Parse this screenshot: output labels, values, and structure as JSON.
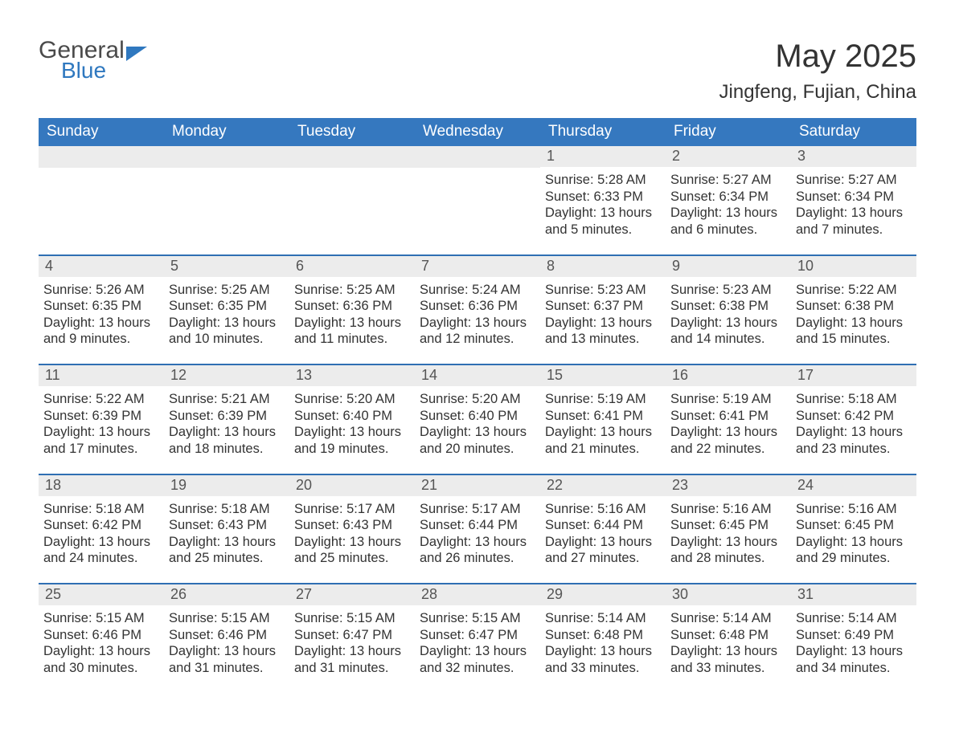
{
  "logo": {
    "general": "General",
    "blue": "Blue"
  },
  "title": "May 2025",
  "location": "Jingfeng, Fujian, China",
  "weekday_header_bg": "#3578bf",
  "weekday_header_fg": "#ffffff",
  "day_number_bg": "#ececec",
  "week_border_color": "#2f6fb3",
  "text_color": "#333333",
  "weekdays": [
    "Sunday",
    "Monday",
    "Tuesday",
    "Wednesday",
    "Thursday",
    "Friday",
    "Saturday"
  ],
  "weeks": [
    [
      {
        "day": null
      },
      {
        "day": null
      },
      {
        "day": null
      },
      {
        "day": null
      },
      {
        "day": "1",
        "sunrise": "Sunrise: 5:28 AM",
        "sunset": "Sunset: 6:33 PM",
        "daylight1": "Daylight: 13 hours",
        "daylight2": "and 5 minutes."
      },
      {
        "day": "2",
        "sunrise": "Sunrise: 5:27 AM",
        "sunset": "Sunset: 6:34 PM",
        "daylight1": "Daylight: 13 hours",
        "daylight2": "and 6 minutes."
      },
      {
        "day": "3",
        "sunrise": "Sunrise: 5:27 AM",
        "sunset": "Sunset: 6:34 PM",
        "daylight1": "Daylight: 13 hours",
        "daylight2": "and 7 minutes."
      }
    ],
    [
      {
        "day": "4",
        "sunrise": "Sunrise: 5:26 AM",
        "sunset": "Sunset: 6:35 PM",
        "daylight1": "Daylight: 13 hours",
        "daylight2": "and 9 minutes."
      },
      {
        "day": "5",
        "sunrise": "Sunrise: 5:25 AM",
        "sunset": "Sunset: 6:35 PM",
        "daylight1": "Daylight: 13 hours",
        "daylight2": "and 10 minutes."
      },
      {
        "day": "6",
        "sunrise": "Sunrise: 5:25 AM",
        "sunset": "Sunset: 6:36 PM",
        "daylight1": "Daylight: 13 hours",
        "daylight2": "and 11 minutes."
      },
      {
        "day": "7",
        "sunrise": "Sunrise: 5:24 AM",
        "sunset": "Sunset: 6:36 PM",
        "daylight1": "Daylight: 13 hours",
        "daylight2": "and 12 minutes."
      },
      {
        "day": "8",
        "sunrise": "Sunrise: 5:23 AM",
        "sunset": "Sunset: 6:37 PM",
        "daylight1": "Daylight: 13 hours",
        "daylight2": "and 13 minutes."
      },
      {
        "day": "9",
        "sunrise": "Sunrise: 5:23 AM",
        "sunset": "Sunset: 6:38 PM",
        "daylight1": "Daylight: 13 hours",
        "daylight2": "and 14 minutes."
      },
      {
        "day": "10",
        "sunrise": "Sunrise: 5:22 AM",
        "sunset": "Sunset: 6:38 PM",
        "daylight1": "Daylight: 13 hours",
        "daylight2": "and 15 minutes."
      }
    ],
    [
      {
        "day": "11",
        "sunrise": "Sunrise: 5:22 AM",
        "sunset": "Sunset: 6:39 PM",
        "daylight1": "Daylight: 13 hours",
        "daylight2": "and 17 minutes."
      },
      {
        "day": "12",
        "sunrise": "Sunrise: 5:21 AM",
        "sunset": "Sunset: 6:39 PM",
        "daylight1": "Daylight: 13 hours",
        "daylight2": "and 18 minutes."
      },
      {
        "day": "13",
        "sunrise": "Sunrise: 5:20 AM",
        "sunset": "Sunset: 6:40 PM",
        "daylight1": "Daylight: 13 hours",
        "daylight2": "and 19 minutes."
      },
      {
        "day": "14",
        "sunrise": "Sunrise: 5:20 AM",
        "sunset": "Sunset: 6:40 PM",
        "daylight1": "Daylight: 13 hours",
        "daylight2": "and 20 minutes."
      },
      {
        "day": "15",
        "sunrise": "Sunrise: 5:19 AM",
        "sunset": "Sunset: 6:41 PM",
        "daylight1": "Daylight: 13 hours",
        "daylight2": "and 21 minutes."
      },
      {
        "day": "16",
        "sunrise": "Sunrise: 5:19 AM",
        "sunset": "Sunset: 6:41 PM",
        "daylight1": "Daylight: 13 hours",
        "daylight2": "and 22 minutes."
      },
      {
        "day": "17",
        "sunrise": "Sunrise: 5:18 AM",
        "sunset": "Sunset: 6:42 PM",
        "daylight1": "Daylight: 13 hours",
        "daylight2": "and 23 minutes."
      }
    ],
    [
      {
        "day": "18",
        "sunrise": "Sunrise: 5:18 AM",
        "sunset": "Sunset: 6:42 PM",
        "daylight1": "Daylight: 13 hours",
        "daylight2": "and 24 minutes."
      },
      {
        "day": "19",
        "sunrise": "Sunrise: 5:18 AM",
        "sunset": "Sunset: 6:43 PM",
        "daylight1": "Daylight: 13 hours",
        "daylight2": "and 25 minutes."
      },
      {
        "day": "20",
        "sunrise": "Sunrise: 5:17 AM",
        "sunset": "Sunset: 6:43 PM",
        "daylight1": "Daylight: 13 hours",
        "daylight2": "and 25 minutes."
      },
      {
        "day": "21",
        "sunrise": "Sunrise: 5:17 AM",
        "sunset": "Sunset: 6:44 PM",
        "daylight1": "Daylight: 13 hours",
        "daylight2": "and 26 minutes."
      },
      {
        "day": "22",
        "sunrise": "Sunrise: 5:16 AM",
        "sunset": "Sunset: 6:44 PM",
        "daylight1": "Daylight: 13 hours",
        "daylight2": "and 27 minutes."
      },
      {
        "day": "23",
        "sunrise": "Sunrise: 5:16 AM",
        "sunset": "Sunset: 6:45 PM",
        "daylight1": "Daylight: 13 hours",
        "daylight2": "and 28 minutes."
      },
      {
        "day": "24",
        "sunrise": "Sunrise: 5:16 AM",
        "sunset": "Sunset: 6:45 PM",
        "daylight1": "Daylight: 13 hours",
        "daylight2": "and 29 minutes."
      }
    ],
    [
      {
        "day": "25",
        "sunrise": "Sunrise: 5:15 AM",
        "sunset": "Sunset: 6:46 PM",
        "daylight1": "Daylight: 13 hours",
        "daylight2": "and 30 minutes."
      },
      {
        "day": "26",
        "sunrise": "Sunrise: 5:15 AM",
        "sunset": "Sunset: 6:46 PM",
        "daylight1": "Daylight: 13 hours",
        "daylight2": "and 31 minutes."
      },
      {
        "day": "27",
        "sunrise": "Sunrise: 5:15 AM",
        "sunset": "Sunset: 6:47 PM",
        "daylight1": "Daylight: 13 hours",
        "daylight2": "and 31 minutes."
      },
      {
        "day": "28",
        "sunrise": "Sunrise: 5:15 AM",
        "sunset": "Sunset: 6:47 PM",
        "daylight1": "Daylight: 13 hours",
        "daylight2": "and 32 minutes."
      },
      {
        "day": "29",
        "sunrise": "Sunrise: 5:14 AM",
        "sunset": "Sunset: 6:48 PM",
        "daylight1": "Daylight: 13 hours",
        "daylight2": "and 33 minutes."
      },
      {
        "day": "30",
        "sunrise": "Sunrise: 5:14 AM",
        "sunset": "Sunset: 6:48 PM",
        "daylight1": "Daylight: 13 hours",
        "daylight2": "and 33 minutes."
      },
      {
        "day": "31",
        "sunrise": "Sunrise: 5:14 AM",
        "sunset": "Sunset: 6:49 PM",
        "daylight1": "Daylight: 13 hours",
        "daylight2": "and 34 minutes."
      }
    ]
  ]
}
